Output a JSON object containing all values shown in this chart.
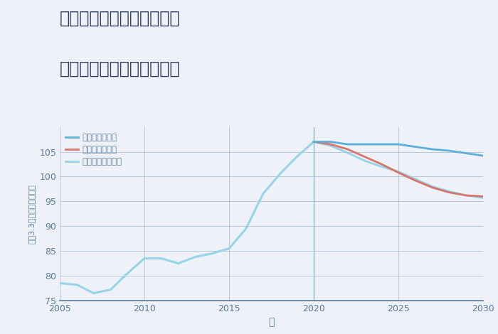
{
  "title_line1": "兵庫県姫路市安富町皆河の",
  "title_line2": "中古マンションの価格推移",
  "xlabel": "年",
  "ylabel": "坪（3.3㎡）単価（万円）",
  "xlim": [
    2005,
    2030
  ],
  "ylim": [
    75,
    110
  ],
  "yticks": [
    75,
    80,
    85,
    90,
    95,
    100,
    105
  ],
  "xticks": [
    2005,
    2010,
    2015,
    2020,
    2025,
    2030
  ],
  "background_color": "#eef2f8",
  "plot_bg_color": "#eef2f8",
  "grid_color": "#b8c8dc",
  "title_color": "#2d3a5a",
  "tick_color": "#5a7a9a",
  "legend_labels": [
    "グッドシナリオ",
    "バッドシナリオ",
    "ノーマルシナリオ"
  ],
  "good_color": "#5ab0d8",
  "bad_color": "#d9736a",
  "normal_color": "#96d4e8",
  "vline_color": "#7ab8d8",
  "vline_x": 2020,
  "historical_years": [
    2005,
    2006,
    2007,
    2008,
    2009,
    2010,
    2011,
    2012,
    2013,
    2014,
    2015,
    2016,
    2017,
    2018,
    2019,
    2020
  ],
  "historical_values": [
    78.5,
    78.2,
    76.5,
    77.2,
    80.5,
    83.5,
    83.5,
    82.5,
    83.8,
    84.5,
    85.5,
    89.5,
    96.5,
    100.5,
    104.0,
    107.0
  ],
  "future_years": [
    2020,
    2021,
    2022,
    2023,
    2024,
    2025,
    2026,
    2027,
    2028,
    2029,
    2030
  ],
  "good_values": [
    107.0,
    107.0,
    106.5,
    106.5,
    106.5,
    106.5,
    106.0,
    105.5,
    105.2,
    104.7,
    104.2
  ],
  "bad_values": [
    107.0,
    106.5,
    105.5,
    104.0,
    102.5,
    100.8,
    99.2,
    97.8,
    96.8,
    96.2,
    96.0
  ],
  "normal_values": [
    107.0,
    106.2,
    104.8,
    103.2,
    102.0,
    101.0,
    99.5,
    98.0,
    97.0,
    96.2,
    95.7
  ]
}
